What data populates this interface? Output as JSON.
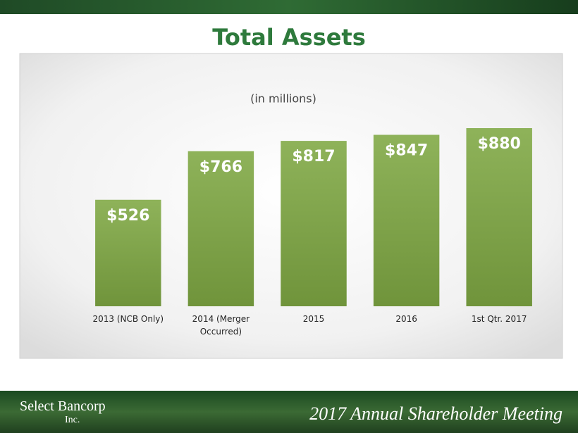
{
  "chart_data": {
    "type": "bar",
    "title": "Total Assets",
    "subtitle": "(in millions)",
    "categories": [
      "2013 (NCB Only)",
      "2014 (Merger Occurred)",
      "2015",
      "2016",
      "1st Qtr. 2017"
    ],
    "values": [
      526,
      766,
      817,
      847,
      880
    ],
    "value_labels": [
      "$526",
      "$766",
      "$817",
      "$847",
      "$880"
    ],
    "color": "#7fa843",
    "ylim": [
      0,
      1000
    ]
  },
  "footer": {
    "logo": "Select Bancorp",
    "logo_sub": "Inc.",
    "text": "2017 Annual Shareholder Meeting"
  }
}
